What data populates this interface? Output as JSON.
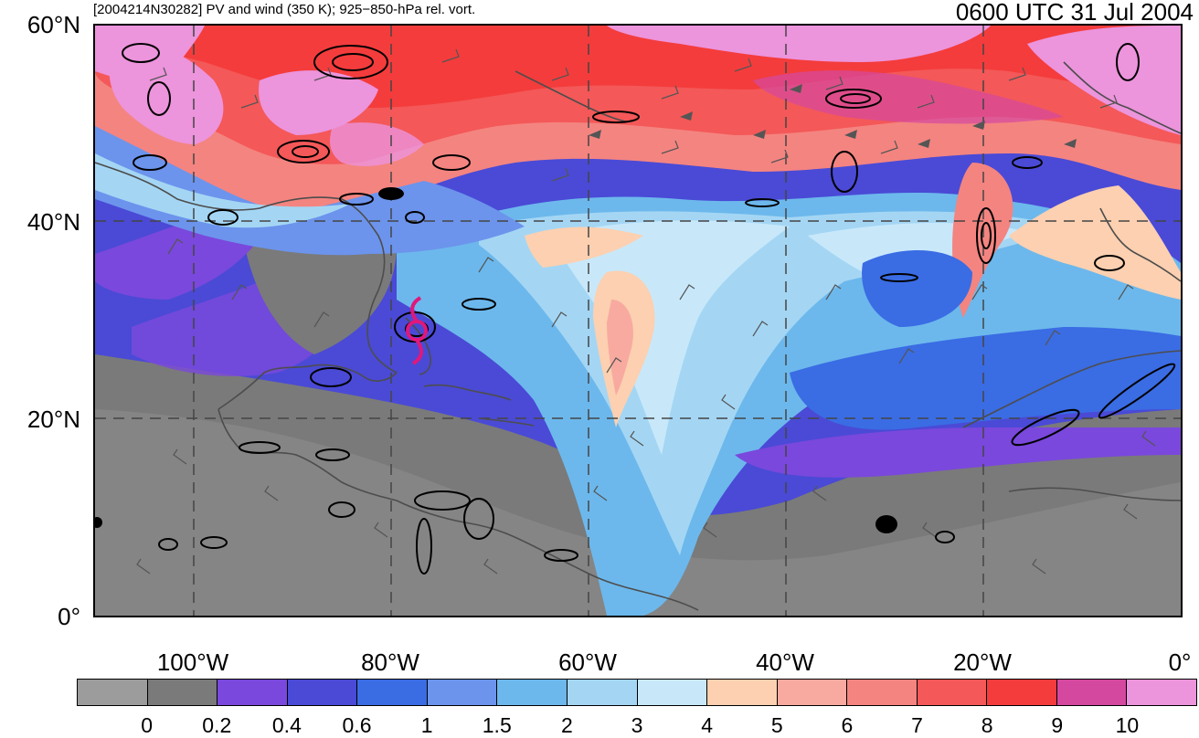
{
  "header": {
    "left_title": "[2004214N30282] PV and wind (350 K); 925−850-hPa rel. vort.",
    "right_title": "0600 UTC 31 Jul 2004"
  },
  "axes": {
    "lat_labels": [
      "60°N",
      "40°N",
      "20°N",
      "0°"
    ],
    "lon_labels": [
      "100°W",
      "80°W",
      "60°W",
      "40°W",
      "20°W",
      "0°"
    ]
  },
  "colorbar": {
    "labels": [
      "0",
      "0.2",
      "0.4",
      "0.6",
      "1",
      "1.5",
      "2",
      "3",
      "4",
      "5",
      "6",
      "7",
      "8",
      "9",
      "10"
    ],
    "colors": [
      "#9c9c9c",
      "#7a7a7a",
      "#7a48dc",
      "#4a4ad6",
      "#3a6ce4",
      "#6c94ec",
      "#6cb8ec",
      "#a4d6f4",
      "#c8e8fa",
      "#fcd0b0",
      "#f8aaa0",
      "#f48480",
      "#f45858",
      "#f43c3c",
      "#d448a0",
      "#ec94dc"
    ]
  },
  "legend": {
    "storm_symbol": "tropical-cyclone-icon",
    "storm_color": "#e0187c"
  }
}
